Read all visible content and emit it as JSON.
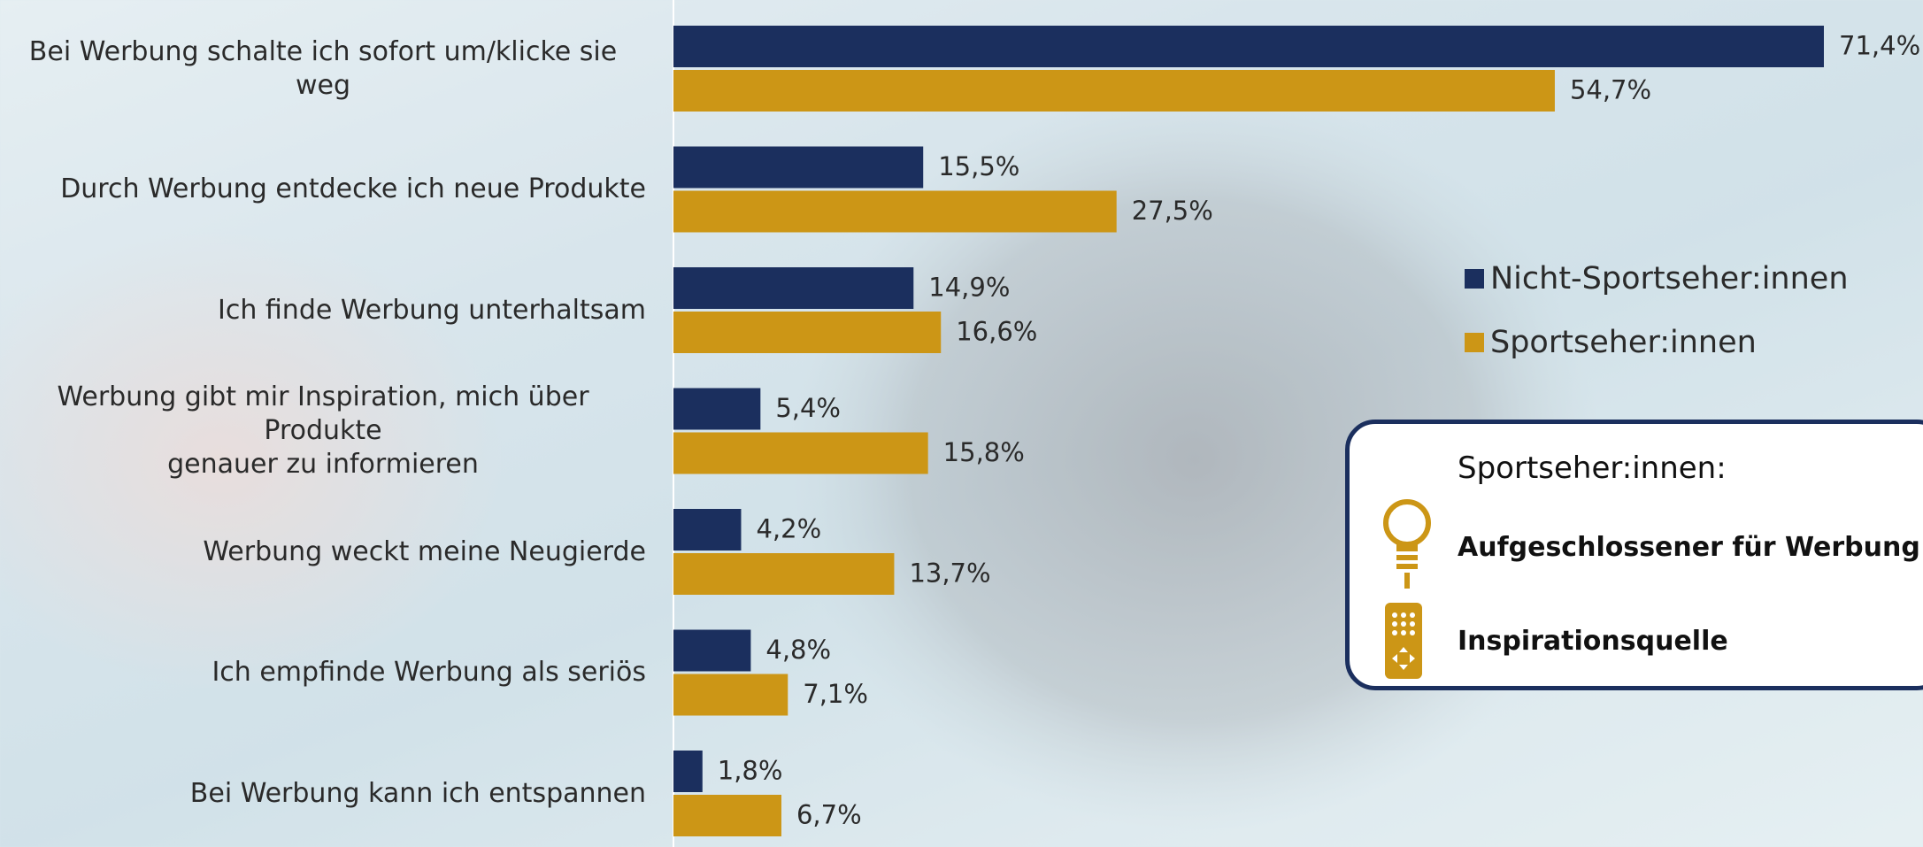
{
  "chart_data": {
    "type": "bar",
    "orientation": "horizontal",
    "categories": [
      "Bei Werbung schalte ich sofort um/klicke sie weg",
      "Durch Werbung entdecke ich neue Produkte",
      "Ich finde Werbung unterhaltsam",
      "Werbung gibt mir Inspiration, mich über Produkte\ngenauer zu informieren",
      "Werbung weckt meine Neugierde",
      "Ich empfinde Werbung als seriös",
      "Bei Werbung kann ich entspannen"
    ],
    "series": [
      {
        "name": "Nicht-Sportseher:innen",
        "color": "#1b2f5e",
        "values": [
          71.4,
          15.5,
          14.9,
          5.4,
          4.2,
          4.8,
          1.8
        ],
        "value_labels": [
          "71,4%",
          "15,5%",
          "14,9%",
          "5,4%",
          "4,2%",
          "4,8%",
          "1,8%"
        ]
      },
      {
        "name": "Sportseher:innen",
        "color": "#cc9616",
        "values": [
          54.7,
          27.5,
          16.6,
          15.8,
          13.7,
          7.1,
          6.7
        ],
        "value_labels": [
          "54,7%",
          "27,5%",
          "16,6%",
          "15,8%",
          "13,7%",
          "7,1%",
          "6,7%"
        ]
      }
    ],
    "legend": "right",
    "callout": {
      "title": "Sportseher:innen:",
      "items": [
        "Aufgeschlossener für Werbung",
        "Inspirationsquelle"
      ]
    }
  }
}
